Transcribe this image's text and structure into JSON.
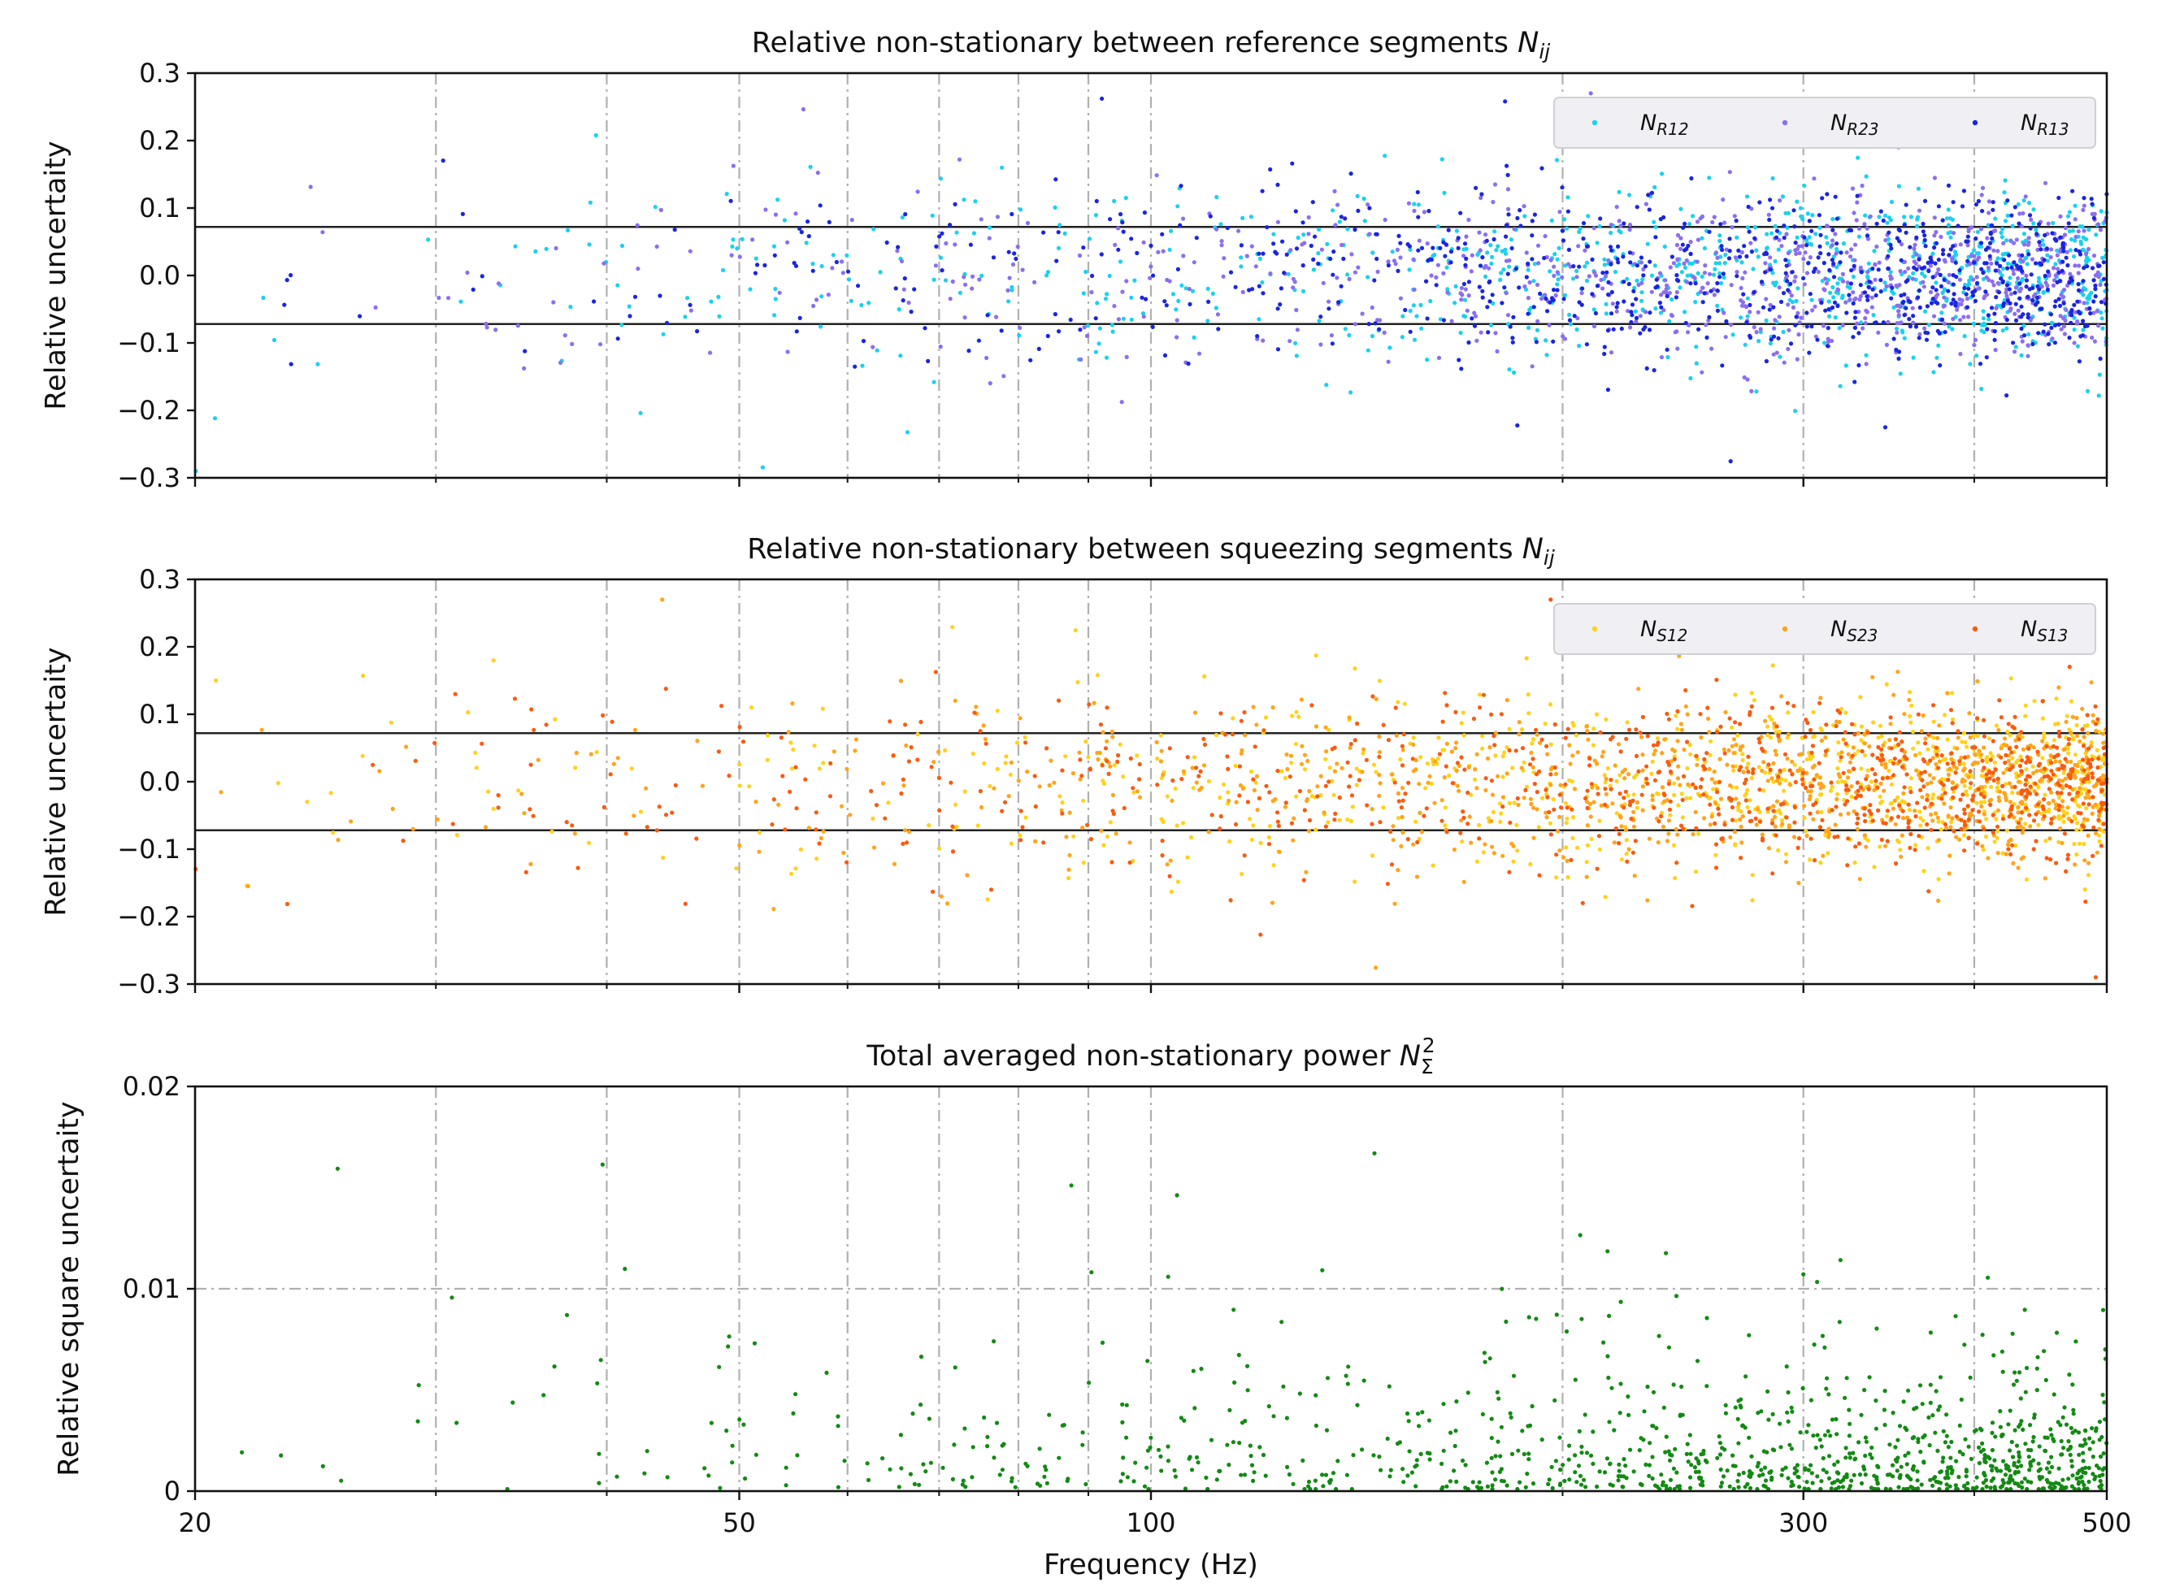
{
  "chart_data": [
    {
      "type": "scatter",
      "title": "Relative non-stationary between reference segments",
      "title_math": "N_ij",
      "xlabel": "",
      "ylabel": "Relative uncertaity",
      "xscale": "log",
      "xlim": [
        20,
        500
      ],
      "ylim": [
        -0.3,
        0.3
      ],
      "yticks": [
        "0.3",
        "0.2",
        "0.1",
        "0.0",
        "−0.1",
        "−0.2",
        "−0.3"
      ],
      "threshold_lines": [
        0.072,
        -0.072
      ],
      "vertical_grid_hz": [
        30,
        40,
        50,
        60,
        70,
        80,
        90,
        100,
        200,
        300,
        400
      ],
      "legend_position": "top-right",
      "series": [
        {
          "name": "N_R12",
          "label_main": "N",
          "label_sub": "R12",
          "color": "#1ad1ee",
          "seed": 11
        },
        {
          "name": "N_R23",
          "label_main": "N",
          "label_sub": "R23",
          "color": "#8c6ef0",
          "seed": 23
        },
        {
          "name": "N_R13",
          "label_main": "N",
          "label_sub": "R13",
          "color": "#1a25e0",
          "seed": 37
        }
      ]
    },
    {
      "type": "scatter",
      "title": "Relative non-stationary between squeezing segments",
      "title_math": "N_ij",
      "xlabel": "",
      "ylabel": "Relative uncertaity",
      "xscale": "log",
      "xlim": [
        20,
        500
      ],
      "ylim": [
        -0.3,
        0.3
      ],
      "yticks": [
        "0.3",
        "0.2",
        "0.1",
        "0.0",
        "−0.1",
        "−0.2",
        "−0.3"
      ],
      "threshold_lines": [
        0.072,
        -0.072
      ],
      "vertical_grid_hz": [
        30,
        40,
        50,
        60,
        70,
        80,
        90,
        100,
        200,
        300,
        400
      ],
      "legend_position": "top-right",
      "series": [
        {
          "name": "N_S12",
          "label_main": "N",
          "label_sub": "S12",
          "color": "#ffd21a",
          "seed": 41
        },
        {
          "name": "N_S23",
          "label_main": "N",
          "label_sub": "S23",
          "color": "#ffa41a",
          "seed": 53
        },
        {
          "name": "N_S13",
          "label_main": "N",
          "label_sub": "S13",
          "color": "#f95b10",
          "seed": 67
        }
      ]
    },
    {
      "type": "scatter",
      "title": "Total averaged non-stationary power",
      "title_math": "N_Σ^2",
      "xlabel": "Frequency (Hz)",
      "ylabel": "Relative square uncertaity",
      "xscale": "log",
      "xlim": [
        20,
        500
      ],
      "ylim": [
        0,
        0.02
      ],
      "yticks": [
        "0.02",
        "0.01",
        "0"
      ],
      "xticks": [
        "20",
        "50",
        "100",
        "300",
        "500"
      ],
      "threshold_lines_dashed": [
        0.01
      ],
      "vertical_grid_hz": [
        30,
        40,
        50,
        60,
        70,
        80,
        90,
        100,
        200,
        300,
        400
      ],
      "series": [
        {
          "color": "#138a13",
          "seed": 79
        }
      ]
    }
  ]
}
